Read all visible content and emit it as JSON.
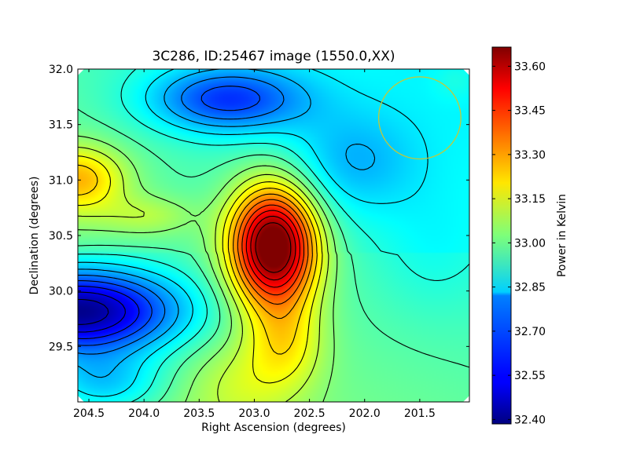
{
  "chart_data": {
    "type": "heatmap",
    "title": "3C286, ID:25467 image (1550.0,XX)",
    "xlabel": "Right Ascension (degrees)",
    "ylabel": "Declination (degrees)",
    "xlim": [
      204.6,
      201.05
    ],
    "ylim": [
      29.0,
      32.0
    ],
    "x_ticks": [
      "204.5",
      "204.0",
      "203.5",
      "203.0",
      "202.5",
      "202.0",
      "201.5"
    ],
    "y_ticks": [
      "29.5",
      "30.0",
      "30.5",
      "31.0",
      "31.5",
      "32.0"
    ],
    "colormap": "jet",
    "colorbar": {
      "label": "Power in Kelvin",
      "range": [
        32.385,
        33.665
      ],
      "ticks": [
        "32.40",
        "32.55",
        "32.70",
        "32.85",
        "33.00",
        "33.15",
        "33.30",
        "33.45",
        "33.60"
      ]
    },
    "features": [
      {
        "kind": "peak",
        "ra": 202.78,
        "dec": 30.42,
        "value": 33.63
      },
      {
        "kind": "minimum",
        "ra": 204.5,
        "dec": 29.8,
        "value": 32.4
      },
      {
        "kind": "minimum",
        "ra": 203.0,
        "dec": 31.65,
        "value": 32.58
      },
      {
        "kind": "local-max",
        "ra": 204.55,
        "dec": 31.05,
        "value": 33.22
      }
    ],
    "beam": {
      "ra": 201.5,
      "dec": 31.56,
      "radius_deg": 0.37,
      "color": "#c8c832"
    }
  }
}
